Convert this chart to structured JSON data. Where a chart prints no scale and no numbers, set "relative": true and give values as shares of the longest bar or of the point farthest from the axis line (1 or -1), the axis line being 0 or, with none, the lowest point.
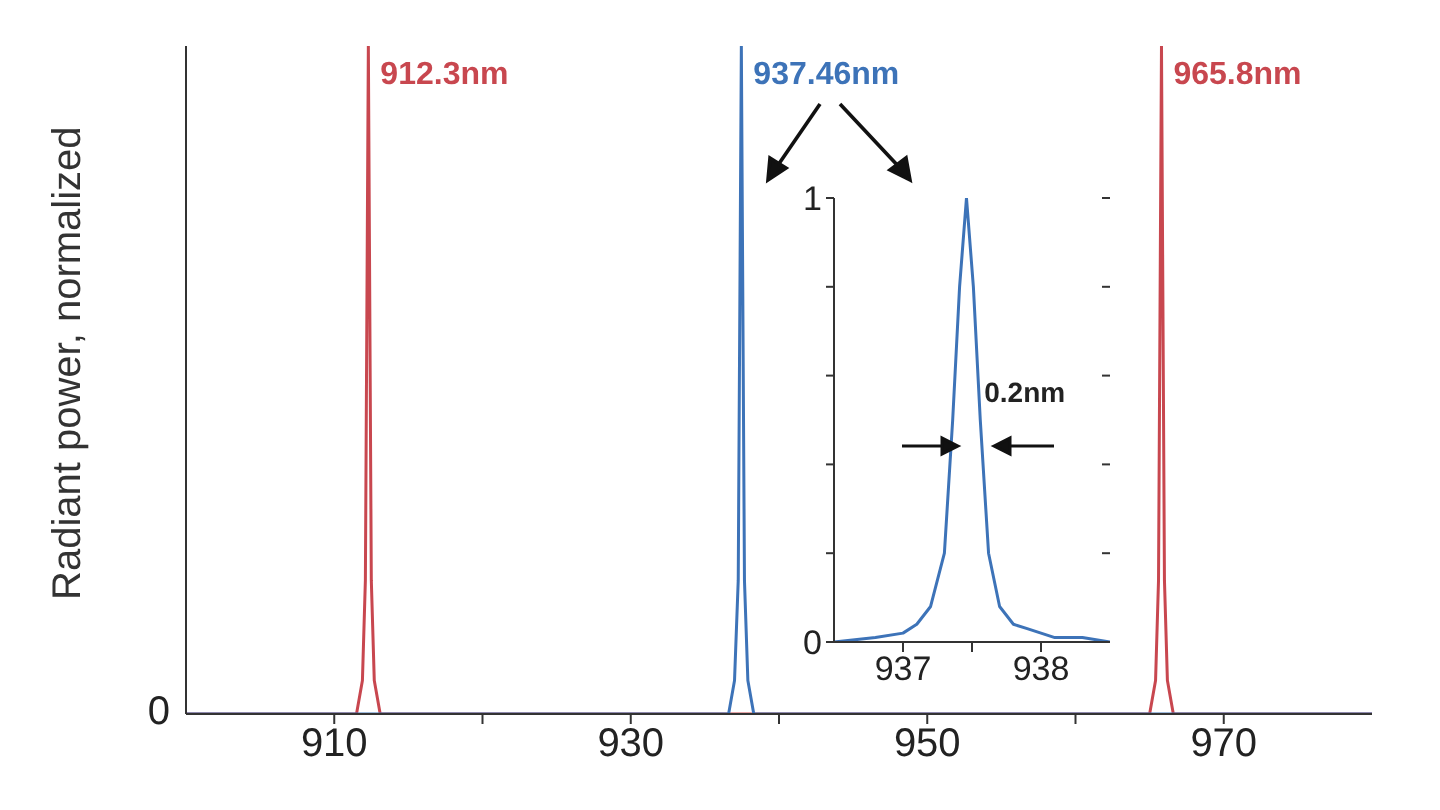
{
  "chart_data": [
    {
      "type": "line",
      "relative": true,
      "ylabel": "Radiant power, normalized",
      "xlim": [
        900,
        980
      ],
      "xticks": [
        910,
        {
          "value": 920,
          "label": null
        },
        930,
        {
          "value": 940,
          "label": null
        },
        950,
        {
          "value": 960,
          "label": null
        },
        970
      ],
      "marker": "none",
      "legend": false,
      "grid": false,
      "series": [
        {
          "color": "#c8474f",
          "x": [
            900,
            911.5,
            911.9,
            912.1,
            912.3,
            912.5,
            912.7,
            913.1,
            965.0,
            965.4,
            965.6,
            965.8,
            966.0,
            966.2,
            966.6,
            980
          ],
          "values": [
            0,
            0,
            0.05,
            0.2,
            1,
            0.2,
            0.05,
            0,
            0,
            0.05,
            0.2,
            1,
            0.2,
            0.05,
            0,
            0
          ]
        },
        {
          "color": "#3d73b8",
          "x": [
            900,
            936.6,
            937.0,
            937.25,
            937.46,
            937.67,
            937.9,
            938.3,
            980
          ],
          "values": [
            0,
            0,
            0.05,
            0.2,
            1,
            0.2,
            0.05,
            0,
            0
          ]
        }
      ],
      "annotations": [
        {
          "text": "912.3nm",
          "x": 912.3,
          "y": 1
        },
        {
          "text": "937.46nm",
          "x": 937.46,
          "y": 1
        },
        {
          "text": "965.8nm",
          "x": 965.8,
          "y": 1
        },
        "0"
      ]
    },
    {
      "type": "line",
      "xlim": [
        936.5,
        938.5
      ],
      "xticks": [
        937,
        {
          "value": 937.5,
          "label": null
        },
        938
      ],
      "ylim": [
        0,
        1
      ],
      "yticks": [
        0,
        {
          "value": 0.2,
          "label": null
        },
        {
          "value": 0.4,
          "label": null
        },
        {
          "value": 0.6,
          "label": null
        },
        {
          "value": 0.8,
          "label": null
        },
        1
      ],
      "marker": "none",
      "legend": false,
      "grid": false,
      "series": [
        {
          "color": "#3d73b8",
          "x": [
            936.5,
            936.8,
            937.0,
            937.1,
            937.2,
            937.3,
            937.36,
            937.41,
            937.46,
            937.51,
            937.56,
            937.62,
            937.7,
            937.8,
            937.9,
            938.1,
            938.3,
            938.5
          ],
          "values": [
            0,
            0.01,
            0.02,
            0.04,
            0.08,
            0.2,
            0.5,
            0.8,
            1,
            0.8,
            0.5,
            0.2,
            0.08,
            0.04,
            0.03,
            0.01,
            0.01,
            0
          ]
        }
      ],
      "annotations": [
        {
          "text": "0.2nm",
          "x": 937.56,
          "y": 0.5
        }
      ]
    }
  ]
}
